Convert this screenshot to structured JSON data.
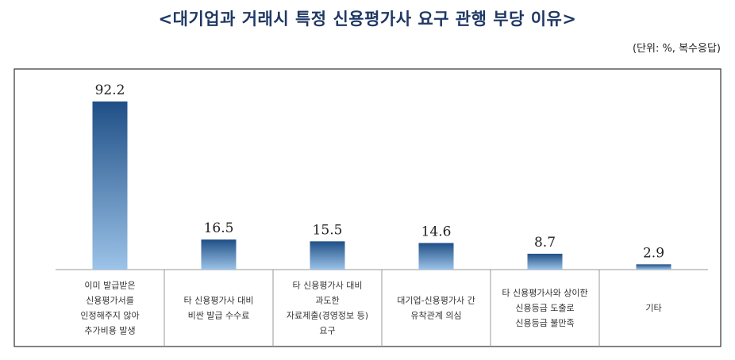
{
  "chart_data": {
    "type": "bar",
    "title": "<대기업과 거래시 특정 신용평가사 요구 관행 부당 이유>",
    "unit_note": "(단위: %, 복수응답)",
    "categories": [
      [
        "이미 발급받은",
        "신용평가서를",
        "인정해주지 않아",
        "추가비용 발생"
      ],
      [
        "타 신용평가사 대비",
        "비싼 발급 수수료"
      ],
      [
        "타 신용평가사 대비",
        "과도한",
        "자료제출(경영정보 등)",
        "요구"
      ],
      [
        "대기업-신용평가사 간",
        "유착관계 의심"
      ],
      [
        "타 신용평가사와 상이한",
        "신용등급 도출로",
        "신용등급 불만족"
      ],
      [
        "기타"
      ]
    ],
    "values": [
      92.2,
      16.5,
      15.5,
      14.6,
      8.7,
      2.9
    ],
    "value_labels": [
      "92.2",
      "16.5",
      "15.5",
      "14.6",
      "8.7",
      "2.9"
    ],
    "ylim": [
      0,
      100
    ],
    "grid": false,
    "colors": {
      "bar_top": "#1f4f86",
      "bar_bottom": "#9cc3e8",
      "title": "#1f3864",
      "frame": "#333333"
    }
  }
}
